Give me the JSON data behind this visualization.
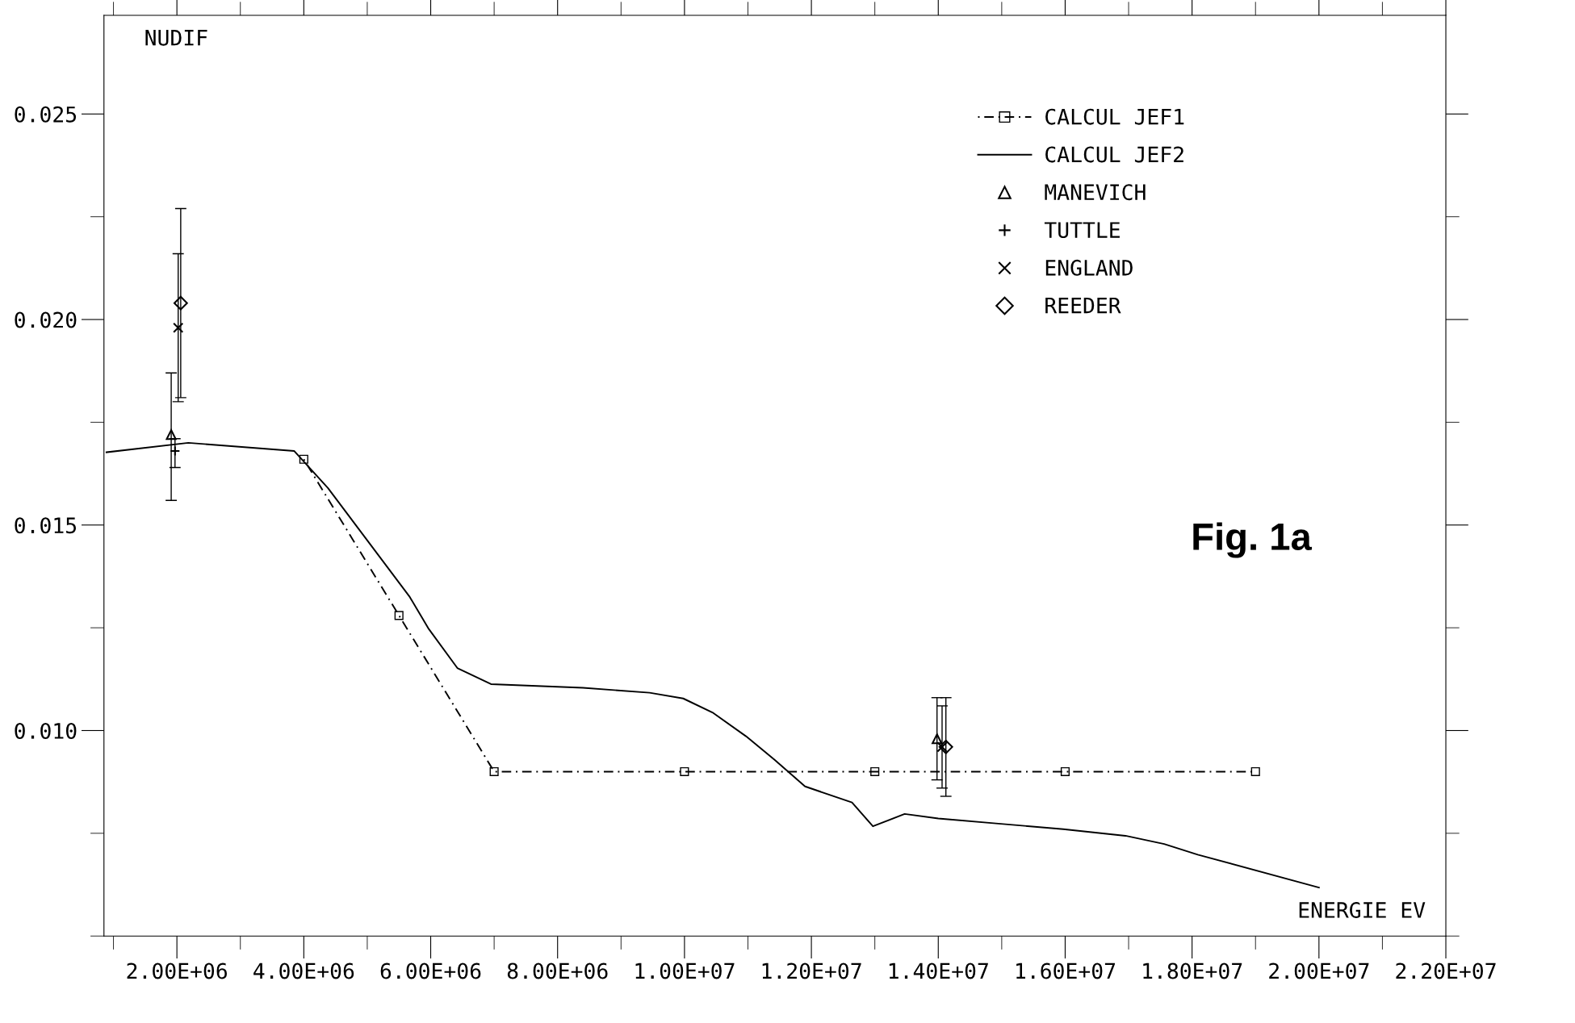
{
  "chart_data": {
    "type": "line",
    "xlabel": "ENERGIE EV",
    "annotations": [
      "NUDIF",
      "Fig. 1a"
    ],
    "xlim": [
      850000,
      22000000
    ],
    "xticks": [
      {
        "value": 2000000,
        "label": "2.00E+06"
      },
      {
        "value": 4000000,
        "label": "4.00E+06"
      },
      {
        "value": 6000000,
        "label": "6.00E+06"
      },
      {
        "value": 8000000,
        "label": "8.00E+06"
      },
      {
        "value": 10000000,
        "label": "1.00E+07"
      },
      {
        "value": 12000000,
        "label": "1.20E+07"
      },
      {
        "value": 14000000,
        "label": "1.40E+07"
      },
      {
        "value": 16000000,
        "label": "1.60E+07"
      },
      {
        "value": 18000000,
        "label": "1.80E+07"
      },
      {
        "value": 20000000,
        "label": "2.00E+07"
      },
      {
        "value": 22000000,
        "label": "2.20E+07"
      }
    ],
    "ylim": [
      0.005,
      0.0274
    ],
    "yticks": [
      {
        "value": 0.01,
        "label": "0.010"
      },
      0.015,
      {
        "value": 0.02,
        "label": "0.020"
      },
      0.025
    ],
    "grid": false,
    "legend": "top right",
    "series": [
      {
        "name": "CALCUL JEF1",
        "color": "#000000",
        "marker": "square",
        "line_style": "dotted",
        "x": [
          4000000,
          5500000,
          7000000,
          10000000,
          13000000,
          16000000,
          19000000
        ],
        "values": [
          0.0166,
          0.0128,
          0.009,
          0.009,
          0.009,
          0.009,
          0.009
        ]
      },
      {
        "name": "CALCUL JEF2",
        "color": "#000000",
        "marker": "none",
        "line_style": "solid",
        "x": [
          890000,
          2180000,
          3850000,
          4380000,
          5670000,
          5970000,
          6420000,
          6950000,
          8400000,
          9450000,
          9980000,
          10440000,
          10970000,
          11420000,
          11900000,
          12640000,
          12970000,
          13470000,
          14000000,
          14910000,
          15970000,
          16950000,
          17560000,
          18090000,
          20000000
        ],
        "values": [
          0.01677,
          0.017,
          0.0168,
          0.0159,
          0.01325,
          0.01247,
          0.01152,
          0.01113,
          0.01104,
          0.01092,
          0.01078,
          0.01044,
          0.00986,
          0.00929,
          0.00864,
          0.00825,
          0.00767,
          0.00797,
          0.00786,
          0.00774,
          0.0076,
          0.00744,
          0.00724,
          0.00698,
          0.00618
        ]
      },
      {
        "name": "MANEVICH",
        "type": "scatter",
        "color": "#000000",
        "marker": "triangle",
        "x": [
          1910000,
          13980000
        ],
        "values": [
          0.0172,
          0.0098
        ],
        "errors": [
          [
            0.0156,
            0.0187
          ],
          [
            0.0088,
            0.0108
          ]
        ]
      },
      {
        "name": "TUTTLE",
        "type": "scatter",
        "color": "#000000",
        "marker": "cross",
        "x": [
          1970000
        ],
        "values": [
          0.0168
        ],
        "errors": [
          [
            0.0164,
            0.0171
          ]
        ]
      },
      {
        "name": "ENGLAND",
        "type": "scatter",
        "color": "#000000",
        "marker": "cross",
        "x": [
          2020000,
          14060000
        ],
        "values": [
          0.0198,
          0.0096
        ],
        "errors": [
          [
            0.018,
            0.0216
          ],
          [
            0.0086,
            0.0106
          ]
        ]
      },
      {
        "name": "REEDER",
        "type": "scatter",
        "color": "#000000",
        "marker": "diamond",
        "x": [
          2060000,
          14120000
        ],
        "values": [
          0.0204,
          0.0096
        ],
        "errors": [
          [
            0.0181,
            0.0227
          ],
          [
            0.0084,
            0.0108
          ]
        ]
      }
    ]
  }
}
